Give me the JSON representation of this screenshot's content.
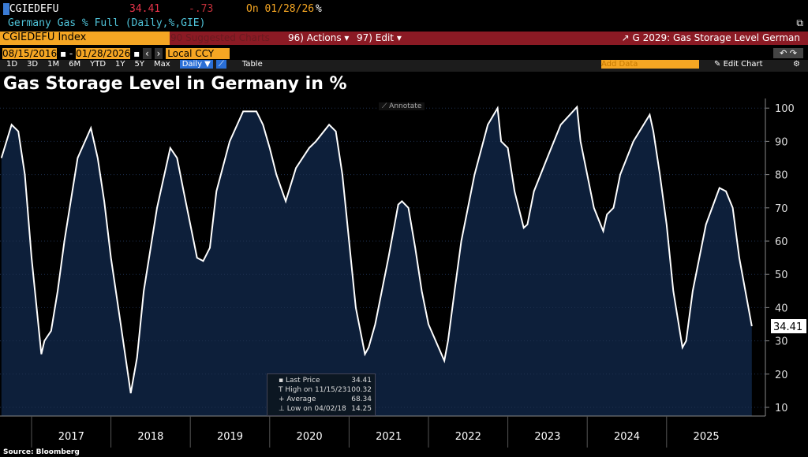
{
  "header": {
    "ticker": "CGIEDEFU",
    "price": "34.41",
    "change": "-.73",
    "on": "On 01/28/26",
    "unit": "%",
    "description": "Germany Gas % Full (Daily,%,GIE)"
  },
  "toolbar": {
    "security": "CGIEDEFU Index",
    "suggested": "90 Suggested Charts",
    "actions": "96) Actions",
    "edit": "97) Edit",
    "launch_title": "G 2029: Gas Storage Level German",
    "start_date": "08/15/2016",
    "end_date": "01/28/2026",
    "currency": "Local CCY",
    "periods": [
      "1D",
      "3D",
      "1M",
      "6M",
      "YTD",
      "1Y",
      "5Y",
      "Max"
    ],
    "frequency": "Daily ▼",
    "table": "Table",
    "add_data": "Add Data",
    "edit_chart": "Edit Chart",
    "annotate": "Annotate"
  },
  "source": "Source: Bloomberg",
  "colors": {
    "fill": "#0d1f3a",
    "line": "#ffffff",
    "orange": "#f5a623",
    "red_bar": "#8b1a24"
  },
  "chart_data": {
    "type": "area",
    "title": "Gas Storage Level in Germany in %",
    "ylim": [
      7,
      102
    ],
    "yticks": [
      10,
      20,
      30,
      40,
      50,
      60,
      70,
      80,
      90,
      100
    ],
    "xticks": [
      "2017",
      "2018",
      "2019",
      "2020",
      "2021",
      "2022",
      "2023",
      "2024",
      "2025"
    ],
    "last_label": "34.41",
    "legend": [
      {
        "label": "Last Price",
        "value": "34.41"
      },
      {
        "label": "High on 11/15/23",
        "value": "100.32"
      },
      {
        "label": "Average",
        "value": "68.34"
      },
      {
        "label": "Low on 04/02/18",
        "value": "14.25"
      }
    ],
    "series": [
      {
        "points": [
          [
            "2016-08-15",
            85
          ],
          [
            "2016-10-01",
            95
          ],
          [
            "2016-11-01",
            93
          ],
          [
            "2016-12-01",
            80
          ],
          [
            "2017-01-01",
            55
          ],
          [
            "2017-02-15",
            26
          ],
          [
            "2017-03-01",
            30
          ],
          [
            "2017-04-01",
            33
          ],
          [
            "2017-05-01",
            45
          ],
          [
            "2017-06-01",
            60
          ],
          [
            "2017-08-01",
            85
          ],
          [
            "2017-10-01",
            94
          ],
          [
            "2017-11-01",
            85
          ],
          [
            "2017-12-01",
            72
          ],
          [
            "2018-01-01",
            55
          ],
          [
            "2018-02-15",
            35
          ],
          [
            "2018-04-02",
            14.25
          ],
          [
            "2018-05-01",
            25
          ],
          [
            "2018-06-01",
            45
          ],
          [
            "2018-08-01",
            70
          ],
          [
            "2018-10-01",
            88
          ],
          [
            "2018-11-01",
            85
          ],
          [
            "2018-12-01",
            75
          ],
          [
            "2019-02-01",
            55
          ],
          [
            "2019-03-01",
            54
          ],
          [
            "2019-04-01",
            58
          ],
          [
            "2019-05-01",
            75
          ],
          [
            "2019-07-01",
            90
          ],
          [
            "2019-09-01",
            99
          ],
          [
            "2019-11-01",
            99
          ],
          [
            "2019-12-01",
            95
          ],
          [
            "2020-01-01",
            88
          ],
          [
            "2020-02-01",
            80
          ],
          [
            "2020-03-15",
            72
          ],
          [
            "2020-05-01",
            82
          ],
          [
            "2020-07-01",
            88
          ],
          [
            "2020-08-01",
            90
          ],
          [
            "2020-10-01",
            95
          ],
          [
            "2020-11-01",
            93
          ],
          [
            "2020-12-01",
            80
          ],
          [
            "2021-01-01",
            60
          ],
          [
            "2021-02-01",
            40
          ],
          [
            "2021-03-15",
            26
          ],
          [
            "2021-04-01",
            28
          ],
          [
            "2021-05-01",
            35
          ],
          [
            "2021-07-01",
            55
          ],
          [
            "2021-08-15",
            71
          ],
          [
            "2021-09-01",
            72
          ],
          [
            "2021-10-01",
            70
          ],
          [
            "2021-11-01",
            58
          ],
          [
            "2021-12-01",
            45
          ],
          [
            "2022-01-01",
            35
          ],
          [
            "2022-03-15",
            24
          ],
          [
            "2022-04-01",
            30
          ],
          [
            "2022-05-01",
            45
          ],
          [
            "2022-06-01",
            60
          ],
          [
            "2022-08-01",
            80
          ],
          [
            "2022-10-01",
            95
          ],
          [
            "2022-11-15",
            100
          ],
          [
            "2022-12-01",
            90
          ],
          [
            "2023-01-01",
            88
          ],
          [
            "2023-02-01",
            75
          ],
          [
            "2023-03-15",
            64
          ],
          [
            "2023-04-01",
            65
          ],
          [
            "2023-05-01",
            75
          ],
          [
            "2023-07-01",
            85
          ],
          [
            "2023-09-01",
            95
          ],
          [
            "2023-11-15",
            100.32
          ],
          [
            "2023-12-01",
            90
          ],
          [
            "2024-01-01",
            80
          ],
          [
            "2024-02-01",
            70
          ],
          [
            "2024-03-15",
            63
          ],
          [
            "2024-04-01",
            68
          ],
          [
            "2024-05-01",
            70
          ],
          [
            "2024-06-01",
            80
          ],
          [
            "2024-08-01",
            90
          ],
          [
            "2024-10-15",
            98
          ],
          [
            "2024-11-01",
            93
          ],
          [
            "2024-12-01",
            80
          ],
          [
            "2025-01-01",
            65
          ],
          [
            "2025-02-01",
            45
          ],
          [
            "2025-03-15",
            28
          ],
          [
            "2025-04-01",
            30
          ],
          [
            "2025-05-01",
            45
          ],
          [
            "2025-07-01",
            65
          ],
          [
            "2025-09-01",
            76
          ],
          [
            "2025-10-01",
            75
          ],
          [
            "2025-11-01",
            70
          ],
          [
            "2025-12-01",
            55
          ],
          [
            "2026-01-28",
            34.41
          ]
        ]
      }
    ]
  }
}
